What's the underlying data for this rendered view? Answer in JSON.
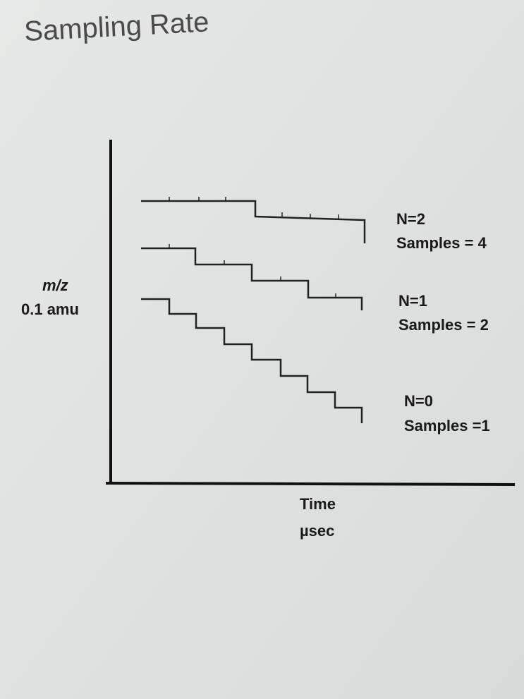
{
  "title": "Sampling Rate",
  "y_axis_label": [
    "m/z",
    "0.1 amu"
  ],
  "x_axis_label": [
    "Time",
    "µsec"
  ],
  "curves": [
    {
      "label": [
        "N=2",
        "Samples = 4"
      ]
    },
    {
      "label": [
        "N=1",
        "Samples = 2"
      ]
    },
    {
      "label": [
        "N=0",
        "Samples =1"
      ]
    }
  ]
}
